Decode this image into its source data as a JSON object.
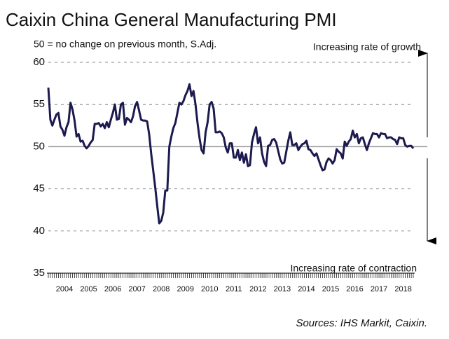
{
  "chart_data": {
    "type": "line",
    "title": "Caixin China General Manufacturing PMI",
    "subtitle": "50 = no change on previous month, S.Adj.",
    "annotations": [
      "Increasing rate of growth",
      "Increasing rate of contraction"
    ],
    "source": "Sources: IHS Markit, Caixin.",
    "categories": [
      null,
      null,
      null,
      null,
      null,
      null,
      null,
      null,
      "2004",
      null,
      null,
      null,
      null,
      null,
      null,
      null,
      null,
      null,
      null,
      null,
      "2005",
      null,
      null,
      null,
      null,
      null,
      null,
      null,
      null,
      null,
      null,
      null,
      "2006",
      null,
      null,
      null,
      null,
      null,
      null,
      null,
      null,
      null,
      null,
      null,
      "2007",
      null,
      null,
      null,
      null,
      null,
      null,
      null,
      null,
      null,
      null,
      null,
      "2008",
      null,
      null,
      null,
      null,
      null,
      null,
      null,
      null,
      null,
      null,
      null,
      "2009",
      null,
      null,
      null,
      null,
      null,
      null,
      null,
      null,
      null,
      null,
      null,
      "2010",
      null,
      null,
      null,
      null,
      null,
      null,
      null,
      null,
      null,
      null,
      null,
      "2011",
      null,
      null,
      null,
      null,
      null,
      null,
      null,
      null,
      null,
      null,
      null,
      "2012",
      null,
      null,
      null,
      null,
      null,
      null,
      null,
      null,
      null,
      null,
      null,
      "2013",
      null,
      null,
      null,
      null,
      null,
      null,
      null,
      null,
      null,
      null,
      null,
      "2014",
      null,
      null,
      null,
      null,
      null,
      null,
      null,
      null,
      null,
      null,
      null,
      "2015",
      null,
      null,
      null,
      null,
      null,
      null,
      null,
      null,
      null,
      null,
      null,
      "2016",
      null,
      null,
      null,
      null,
      null,
      null,
      null,
      null,
      null,
      null,
      null,
      "2017",
      null,
      null,
      null,
      null,
      null,
      null,
      null,
      null,
      null,
      null,
      null,
      "2018",
      null,
      null,
      null,
      null,
      null
    ],
    "series": [
      {
        "name": "Caixin China General Manufacturing PMI",
        "color": "#1c1a4e",
        "values": [
          57,
          53.2,
          52.5,
          53.2,
          53.8,
          54,
          52.4,
          52,
          51.3,
          52.3,
          52.9,
          55.2,
          54.4,
          53.1,
          51.2,
          51.5,
          50.6,
          50.7,
          50.1,
          49.8,
          50.1,
          50.5,
          50.8,
          52.7,
          52.7,
          52.8,
          52.4,
          52.7,
          52.2,
          52.9,
          52.3,
          53.2,
          54,
          55,
          53.2,
          53.3,
          55,
          55.2,
          52.6,
          53.4,
          53.2,
          52.9,
          53.6,
          54.8,
          55.3,
          54.3,
          53.2,
          53.1,
          53.1,
          53,
          51.5,
          49.2,
          47.2,
          45.2,
          43,
          40.9,
          41.2,
          42.2,
          44.8,
          44.8,
          50,
          51.2,
          52.2,
          52.8,
          54,
          55.2,
          55,
          55.4,
          56.1,
          56.6,
          57.4,
          56,
          56.6,
          55,
          52.8,
          51,
          49.6,
          49.2,
          51.7,
          52.9,
          55,
          55.3,
          54.5,
          51.7,
          51.7,
          51.8,
          51.6,
          51.1,
          49.9,
          49.3,
          50.4,
          50.4,
          48.7,
          48.7,
          49.6,
          48.4,
          49.3,
          48.1,
          49.1,
          47.7,
          47.8,
          50.5,
          51.5,
          52.3,
          50.4,
          51.1,
          49.2,
          48.2,
          47.7,
          50.1,
          50.2,
          50.8,
          50.9,
          50.5,
          49.5,
          48.5,
          48,
          48.1,
          49.4,
          50.7,
          51.7,
          50.2,
          50.2,
          50.4,
          49.6,
          50,
          50.3,
          50.4,
          50.7,
          49.7,
          49.6,
          49.2,
          48.9,
          49.2,
          48.5,
          47.8,
          47.2,
          47.3,
          48.2,
          48.6,
          48.4,
          48,
          48.4,
          49.7,
          49.4,
          49.2,
          48.6,
          50.6,
          50.1,
          50.6,
          50.9,
          51.9,
          51.1,
          51.5,
          50.4,
          51,
          51.1,
          50.3,
          49.6,
          50.4,
          51,
          51.6,
          51.5,
          51.5,
          51.1,
          51.6,
          51.5,
          51.5,
          51,
          51.1,
          51.1,
          50.9,
          50.8,
          50.3,
          51.1,
          51,
          51,
          50.2,
          50,
          50.1,
          50.1,
          49.8
        ]
      }
    ],
    "ylim": [
      35,
      60
    ],
    "yticks": [
      35,
      40,
      45,
      50,
      55,
      60
    ],
    "grid": true
  }
}
